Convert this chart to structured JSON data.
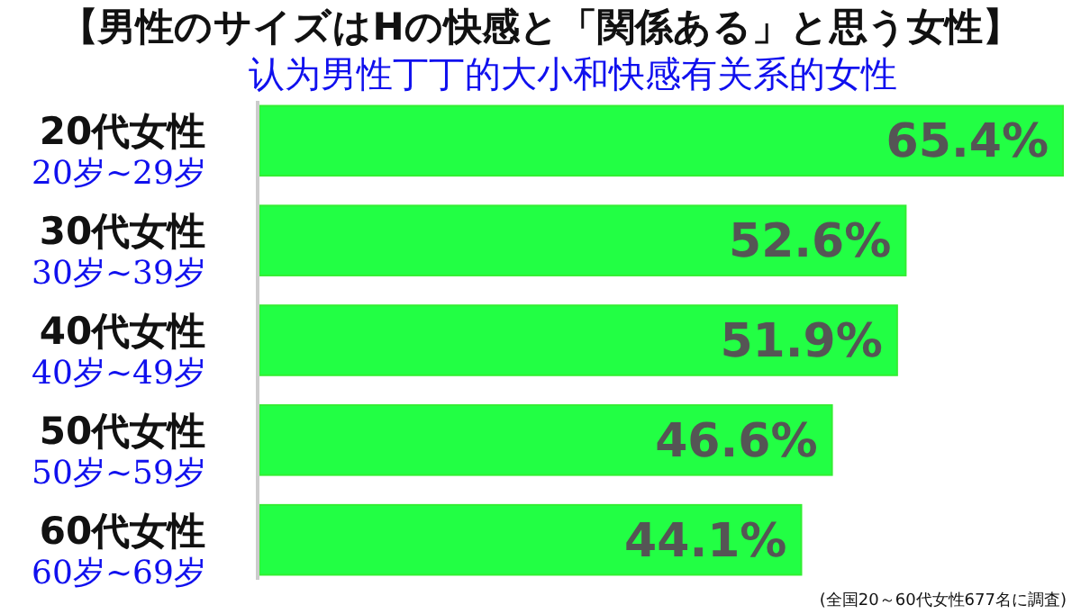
{
  "chart_data": {
    "type": "bar",
    "orientation": "horizontal",
    "title": "【男性のサイズはHの快感と「関係ある」と思う女性】",
    "subtitle": "认为男性丁丁的大小和快感有关系的女性",
    "categories": [
      "20代女性\n20岁~29岁",
      "30代女性\n30岁~39岁",
      "40代女性\n40岁~49岁",
      "50代女性\n50岁~59岁",
      "60代女性\n60岁~69岁"
    ],
    "values": [
      65.4,
      52.6,
      51.9,
      46.6,
      44.1
    ],
    "value_labels": [
      "65.4%",
      "52.6%",
      "51.9%",
      "46.6%",
      "44.1%"
    ],
    "color": "#22ff44",
    "tick_labels": "y",
    "annotations": [
      "(全国20～60代女性677名に調査)"
    ]
  }
}
